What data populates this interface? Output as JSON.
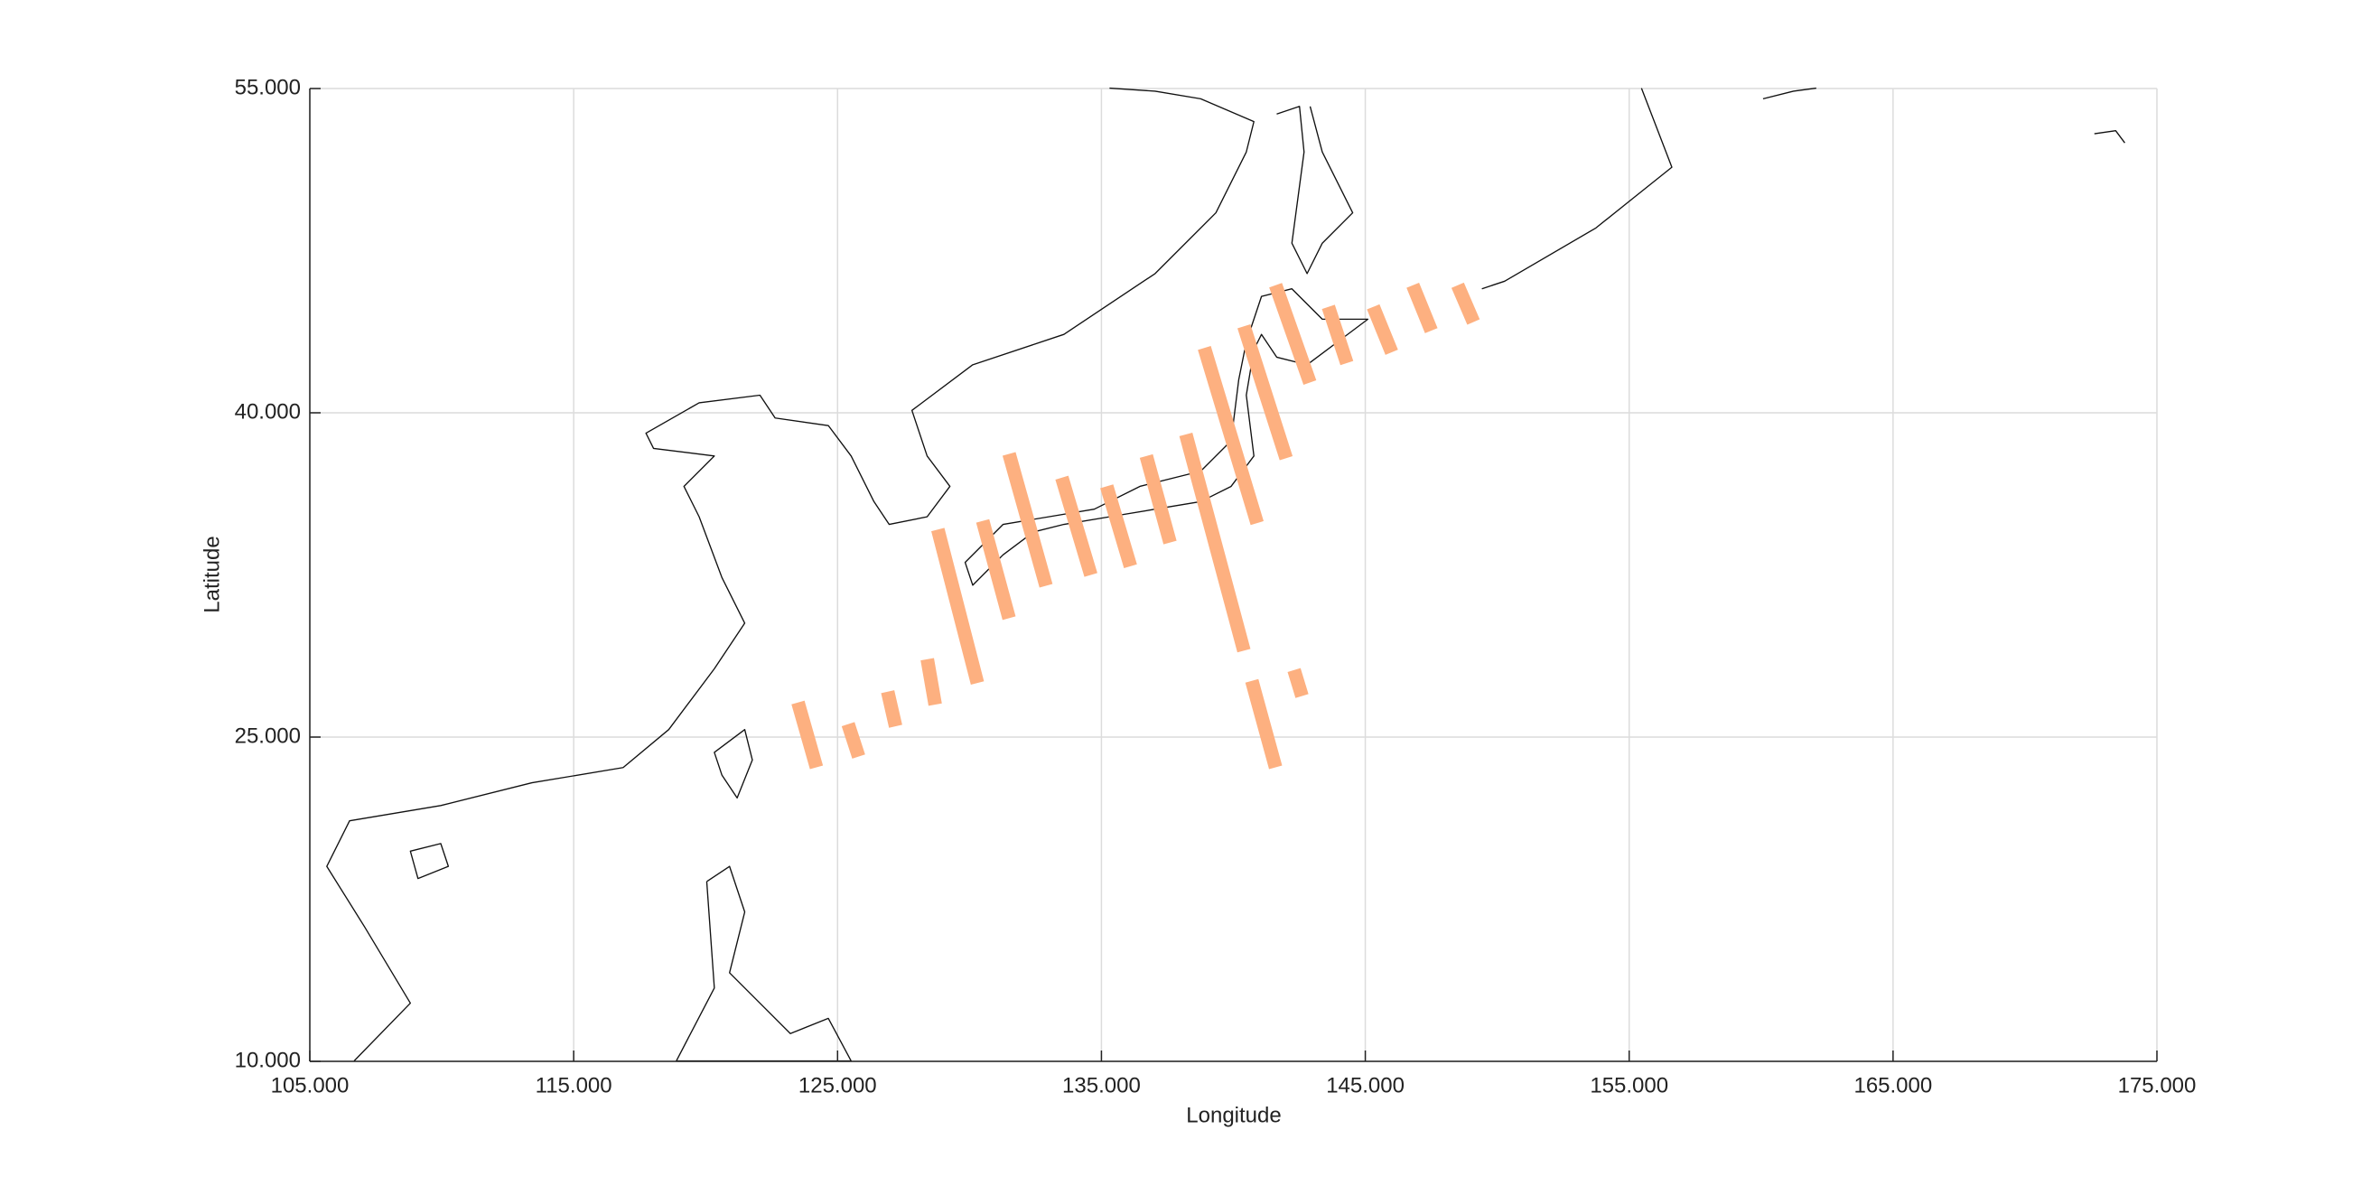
{
  "chart_data": {
    "type": "map",
    "x_label": "Longitude",
    "y_label": "Latitude",
    "xlim": [
      105,
      175
    ],
    "ylim": [
      10,
      55
    ],
    "xticks": [
      {
        "value": 105,
        "label": "105.000"
      },
      {
        "value": 115,
        "label": "115.000"
      },
      {
        "value": 125,
        "label": "125.000"
      },
      {
        "value": 135,
        "label": "135.000"
      },
      {
        "value": 145,
        "label": "145.000"
      },
      {
        "value": 155,
        "label": "155.000"
      },
      {
        "value": 165,
        "label": "165.000"
      },
      {
        "value": 175,
        "label": "175.000"
      }
    ],
    "yticks": [
      {
        "value": 10,
        "label": "10.000"
      },
      {
        "value": 25,
        "label": "25.000"
      },
      {
        "value": 40,
        "label": "40.000"
      },
      {
        "value": 55,
        "label": "55.000"
      }
    ],
    "grid": true,
    "color": "#fdb080",
    "segments": [
      {
        "x": [
          123.5,
          124.2
        ],
        "y": [
          26.6,
          23.6
        ]
      },
      {
        "x": [
          125.4,
          125.8
        ],
        "y": [
          25.6,
          24.1
        ]
      },
      {
        "x": [
          126.9,
          127.2
        ],
        "y": [
          27.1,
          25.5
        ]
      },
      {
        "x": [
          128.4,
          128.7
        ],
        "y": [
          28.6,
          26.5
        ]
      },
      {
        "x": [
          128.8,
          130.3
        ],
        "y": [
          34.6,
          27.5
        ]
      },
      {
        "x": [
          130.5,
          131.5
        ],
        "y": [
          35.0,
          30.5
        ]
      },
      {
        "x": [
          131.5,
          132.9
        ],
        "y": [
          38.1,
          32.0
        ]
      },
      {
        "x": [
          133.5,
          134.6
        ],
        "y": [
          37.0,
          32.5
        ]
      },
      {
        "x": [
          135.2,
          136.1
        ],
        "y": [
          36.6,
          32.9
        ]
      },
      {
        "x": [
          136.7,
          137.6
        ],
        "y": [
          38.0,
          34.0
        ]
      },
      {
        "x": [
          138.2,
          140.4
        ],
        "y": [
          39.0,
          29.0
        ]
      },
      {
        "x": [
          138.9,
          140.9
        ],
        "y": [
          43.0,
          34.9
        ]
      },
      {
        "x": [
          140.4,
          142.0
        ],
        "y": [
          44.0,
          37.9
        ]
      },
      {
        "x": [
          141.6,
          142.9
        ],
        "y": [
          45.9,
          41.4
        ]
      },
      {
        "x": [
          143.6,
          144.3
        ],
        "y": [
          44.9,
          42.3
        ]
      },
      {
        "x": [
          145.3,
          146.0
        ],
        "y": [
          44.9,
          42.8
        ]
      },
      {
        "x": [
          146.8,
          147.5
        ],
        "y": [
          45.9,
          43.8
        ]
      },
      {
        "x": [
          148.5,
          149.1
        ],
        "y": [
          45.9,
          44.2
        ]
      },
      {
        "x": [
          140.7,
          141.6
        ],
        "y": [
          27.6,
          23.6
        ]
      },
      {
        "x": [
          142.3,
          142.6
        ],
        "y": [
          28.1,
          26.9
        ]
      }
    ]
  }
}
